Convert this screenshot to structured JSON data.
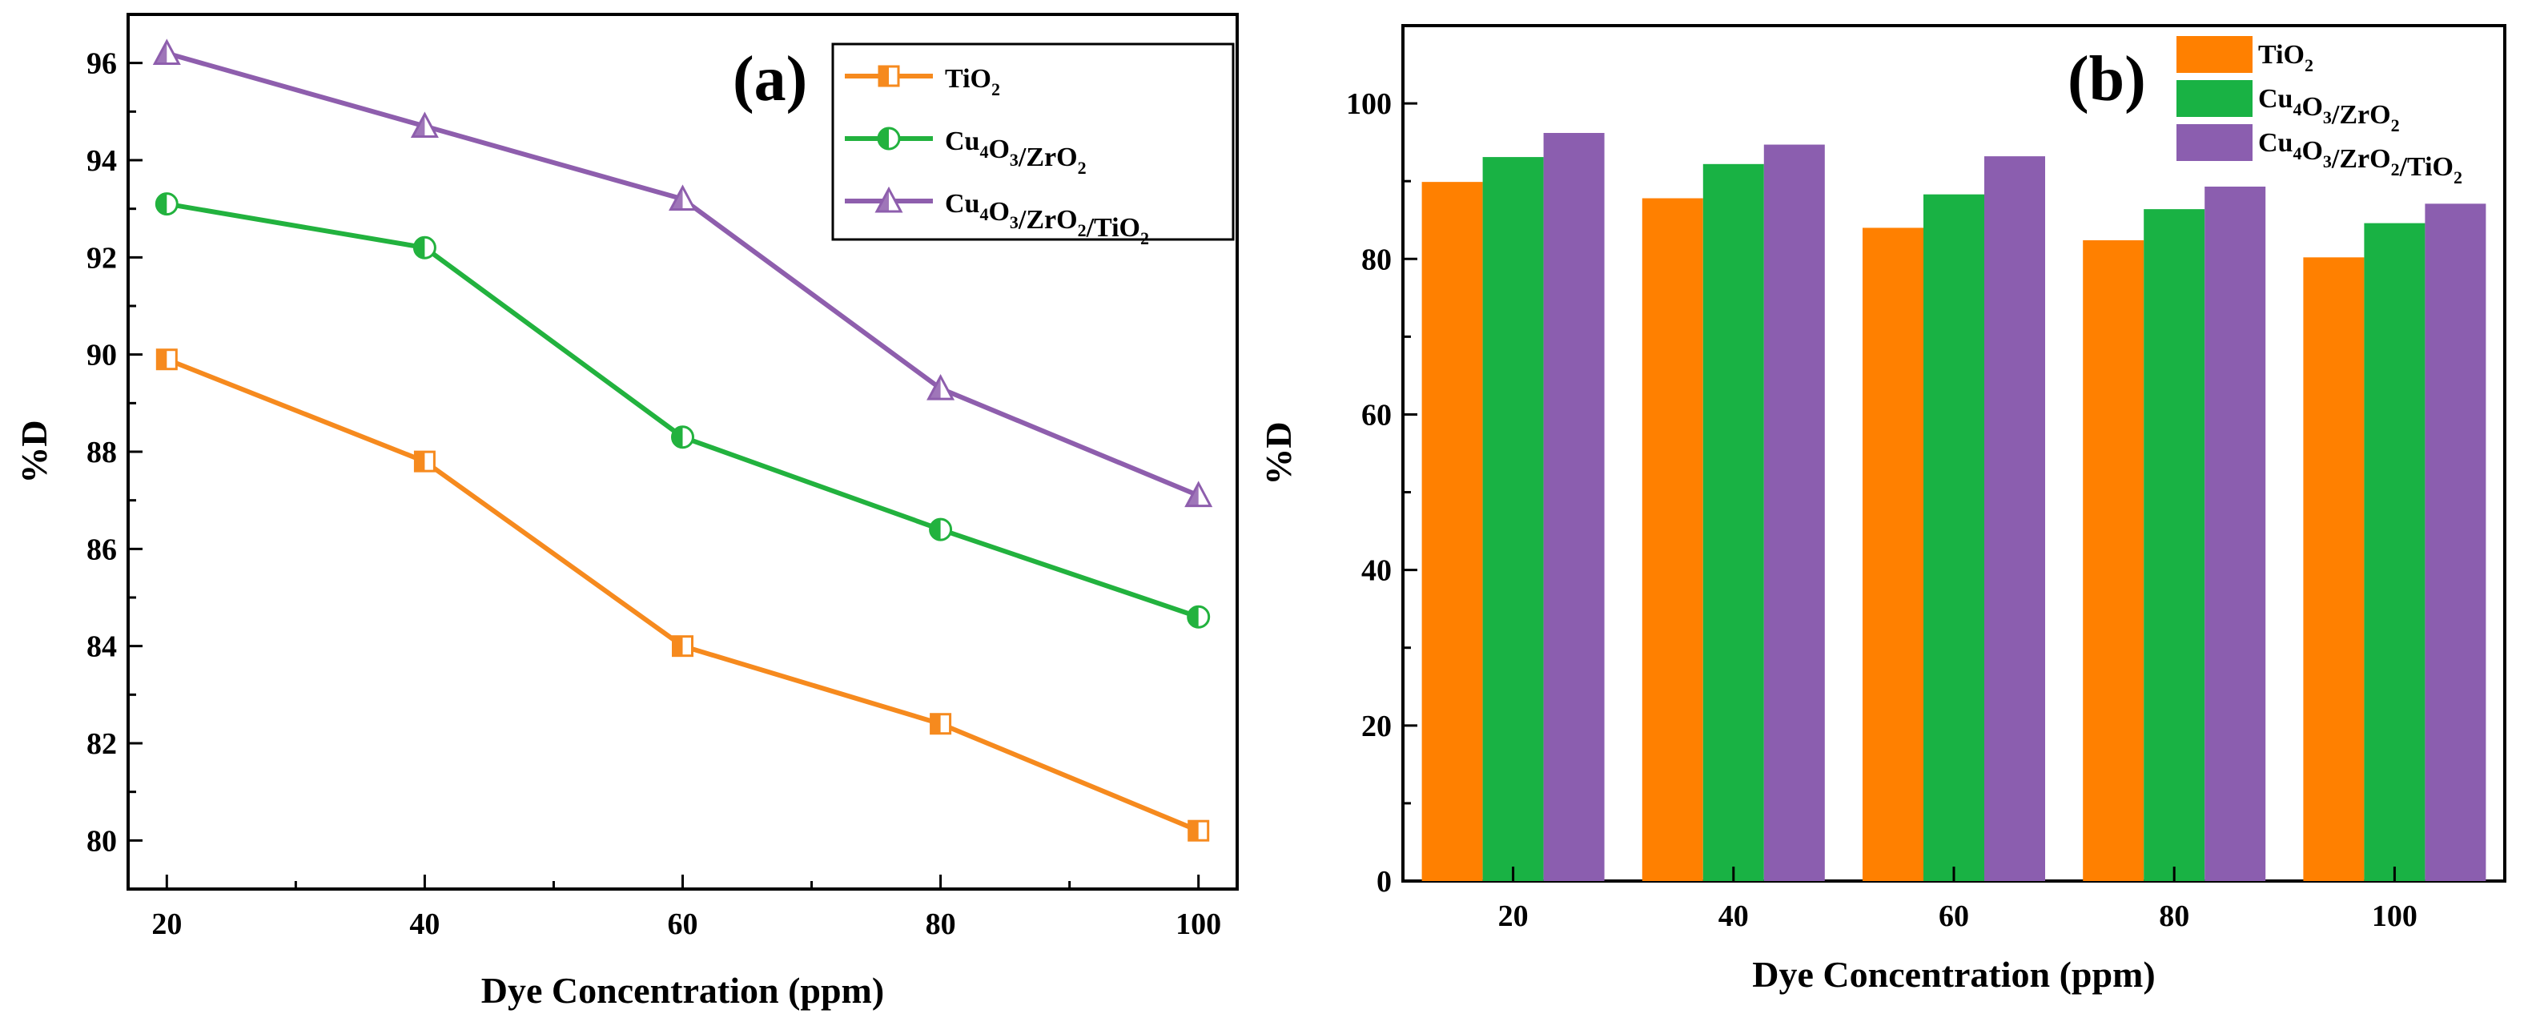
{
  "chart_data": [
    {
      "panel": "(a)",
      "type": "line",
      "x": [
        20,
        40,
        60,
        80,
        100
      ],
      "xlabel": "Dye Concentration (ppm)",
      "ylabel": "%D",
      "xlim": [
        17,
        103
      ],
      "ylim": [
        79,
        97
      ],
      "xticks": [
        20,
        40,
        60,
        80,
        100
      ],
      "yticks": [
        80,
        82,
        84,
        86,
        88,
        90,
        92,
        94,
        96
      ],
      "legend_position": "top-right",
      "series": [
        {
          "name": "TiO2",
          "base": "TiO",
          "sub": "2",
          "marker": "square",
          "color": "#f68a1e",
          "values": [
            89.9,
            87.8,
            84.0,
            82.4,
            80.2
          ]
        },
        {
          "name": "Cu4O3/ZrO2",
          "base": "Cu",
          "sub": "4",
          "mid": "O",
          "sub2": "3",
          "tail": "/ZrO",
          "sub3": "2",
          "marker": "circle",
          "color": "#22b23e",
          "values": [
            93.1,
            92.2,
            88.3,
            86.4,
            84.6
          ]
        },
        {
          "name": "Cu4O3/ZrO2/TiO2",
          "marker": "triangle",
          "color": "#8e5ead",
          "values": [
            96.2,
            94.7,
            93.2,
            89.3,
            87.1
          ]
        }
      ]
    },
    {
      "panel": "(b)",
      "type": "bar",
      "categories": [
        "20",
        "40",
        "60",
        "80",
        "100"
      ],
      "xlabel": "Dye Concentration (ppm)",
      "ylabel": "%D",
      "ylim": [
        0,
        110
      ],
      "yticks": [
        0,
        20,
        40,
        60,
        80,
        100
      ],
      "legend_position": "top-right",
      "series": [
        {
          "name": "TiO2",
          "color": "#ff8000",
          "values": [
            89.9,
            87.8,
            84.0,
            82.4,
            80.2
          ]
        },
        {
          "name": "Cu4O3/ZrO2",
          "color": "#19b244",
          "values": [
            93.1,
            92.2,
            88.3,
            86.4,
            84.6
          ]
        },
        {
          "name": "Cu4O3/ZrO2/TiO2",
          "color": "#8b5eaf",
          "values": [
            96.2,
            94.7,
            93.2,
            89.3,
            87.1
          ]
        }
      ]
    }
  ]
}
